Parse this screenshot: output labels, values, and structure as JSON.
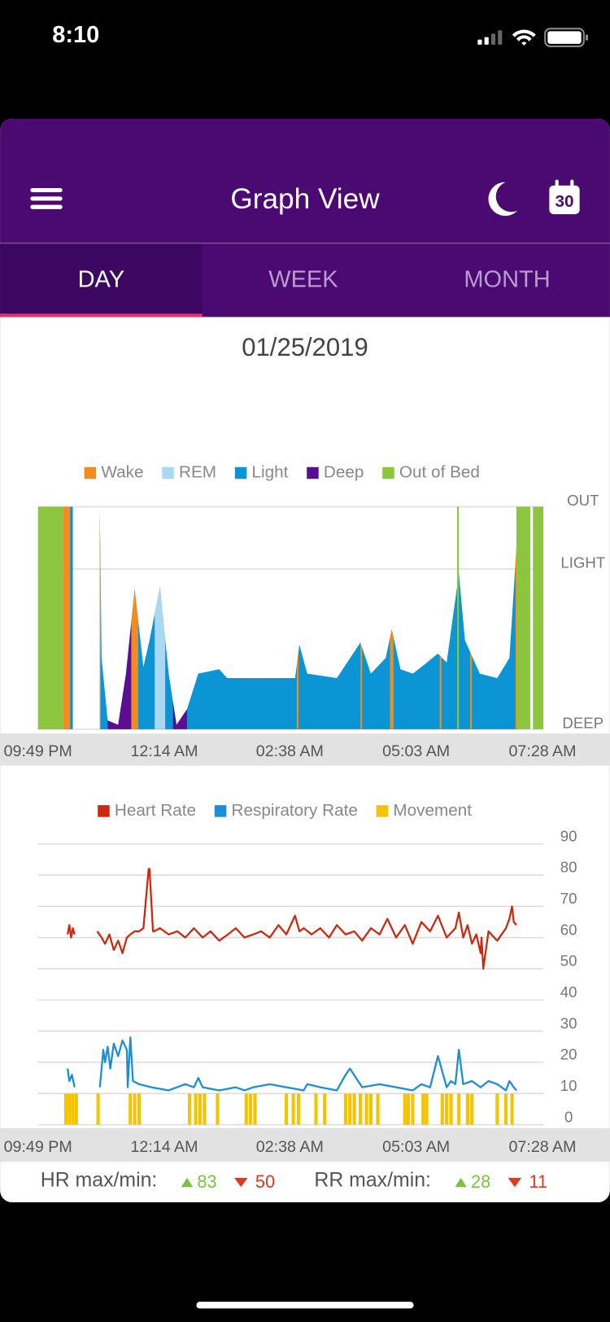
{
  "status_bar": {
    "time": "8:10"
  },
  "header": {
    "title": "Graph View",
    "calendar_day": "30"
  },
  "tabs": [
    "DAY",
    "WEEK",
    "MONTH"
  ],
  "date": "01/25/2019",
  "chart_data": [
    {
      "type": "area",
      "xlim": [
        0,
        580
      ],
      "xticks": [
        {
          "value": 0,
          "label": "09:49 PM"
        },
        {
          "value": 145,
          "label": "12:14 AM"
        },
        {
          "value": 289,
          "label": "02:38 AM"
        },
        {
          "value": 434,
          "label": "05:03 AM"
        },
        {
          "value": 579,
          "label": "07:28 AM"
        }
      ],
      "ylim": [
        0,
        100
      ],
      "yticks": [
        {
          "value": 0,
          "label": "DEEP"
        },
        {
          "value": 72,
          "label": "LIGHT"
        },
        {
          "value": 100,
          "label": "OUT"
        }
      ],
      "grid": true,
      "series": [
        {
          "name": "Wake",
          "color": "#f28c1e",
          "spans": [
            [
              29,
              37
            ],
            [
              70,
              72
            ],
            [
              107,
              115
            ],
            [
              297,
              299
            ],
            [
              370,
              372
            ],
            [
              404,
              408
            ],
            [
              461,
              463
            ],
            [
              496,
              498
            ],
            [
              548,
              551
            ]
          ]
        },
        {
          "name": "REM",
          "color": "#a9d9f2",
          "spans": [
            [
              134,
              146
            ]
          ]
        },
        {
          "name": "Light",
          "color": "#0b95d4",
          "x": [
            29,
            40,
            55,
            71,
            73,
            80,
            92,
            101,
            111,
            121,
            128,
            140,
            150,
            159,
            171,
            184,
            208,
            217,
            295,
            300,
            309,
            343,
            370,
            382,
            399,
            406,
            416,
            430,
            440,
            459,
            469,
            483,
            490,
            507,
            527,
            541,
            549,
            551
          ],
          "values": [
            100,
            100,
            null,
            98,
            32,
            4,
            2,
            25,
            63,
            28,
            40,
            64,
            25,
            2,
            9,
            25,
            27,
            23,
            23,
            38,
            25,
            23,
            39,
            25,
            32,
            45,
            27,
            25,
            28,
            34,
            30,
            70,
            40,
            25,
            23,
            32,
            81,
            97
          ]
        },
        {
          "name": "Deep",
          "color": "#5b0e92",
          "spans": [
            [
              80,
              107
            ],
            [
              155,
              171
            ]
          ]
        },
        {
          "name": "Out of Bed",
          "color": "#8cc63f",
          "full_height": true,
          "spans": [
            [
              0,
              29
            ],
            [
              481,
              483
            ],
            [
              549,
              565
            ],
            [
              568,
              580
            ]
          ]
        }
      ]
    },
    {
      "type": "line",
      "xlim": [
        0,
        580
      ],
      "xticks": [
        {
          "value": 0,
          "label": "09:49 PM"
        },
        {
          "value": 145,
          "label": "12:14 AM"
        },
        {
          "value": 289,
          "label": "02:38 AM"
        },
        {
          "value": 434,
          "label": "05:03 AM"
        },
        {
          "value": 579,
          "label": "07:28 AM"
        }
      ],
      "ylim": [
        0,
        90
      ],
      "yticks": [
        0,
        10,
        20,
        30,
        40,
        50,
        60,
        70,
        80,
        90
      ],
      "grid": true,
      "series": [
        {
          "name": "Heart Rate",
          "color": "#cc2a10",
          "x": [
            34,
            36,
            38,
            40,
            42,
            53,
            68,
            73,
            77,
            82,
            87,
            92,
            97,
            102,
            106,
            111,
            116,
            121,
            127,
            128,
            132,
            133,
            140,
            150,
            160,
            169,
            179,
            189,
            198,
            208,
            218,
            227,
            237,
            247,
            256,
            266,
            276,
            285,
            295,
            300,
            305,
            314,
            324,
            334,
            343,
            353,
            363,
            372,
            382,
            392,
            401,
            411,
            421,
            430,
            440,
            450,
            459,
            469,
            479,
            483,
            488,
            493,
            498,
            503,
            508,
            509,
            511,
            517,
            527,
            537,
            541,
            544,
            546,
            549
          ],
          "values": [
            61,
            64,
            60,
            63,
            61,
            null,
            62,
            60,
            58,
            61,
            56,
            59,
            55,
            60,
            61,
            62,
            62,
            63,
            82,
            82,
            62,
            62,
            63,
            61,
            62,
            60,
            63,
            60,
            62,
            59,
            61,
            63,
            60,
            61,
            62,
            60,
            64,
            61,
            67,
            62,
            63,
            61,
            63,
            60,
            64,
            61,
            62,
            59,
            63,
            61,
            66,
            60,
            64,
            58,
            65,
            62,
            67,
            60,
            63,
            68,
            60,
            64,
            58,
            61,
            55,
            60,
            50,
            62,
            59,
            63,
            66,
            70,
            65,
            64
          ]
        },
        {
          "name": "Respiratory Rate",
          "color": "#1a8fd6",
          "x": [
            34,
            36,
            39,
            42,
            53,
            71,
            75,
            77,
            80,
            83,
            87,
            92,
            97,
            102,
            103,
            106,
            109,
            116,
            130,
            150,
            169,
            179,
            184,
            189,
            208,
            227,
            237,
            247,
            266,
            285,
            305,
            309,
            324,
            343,
            353,
            358,
            372,
            392,
            411,
            430,
            435,
            440,
            450,
            459,
            469,
            474,
            479,
            483,
            488,
            498,
            508,
            517,
            527,
            537,
            541,
            546,
            549
          ],
          "values": [
            18,
            14,
            16,
            12,
            null,
            12,
            24,
            20,
            25,
            18,
            26,
            22,
            27,
            24,
            12,
            28,
            14,
            13,
            12,
            11,
            13,
            12,
            15,
            12,
            11,
            12,
            11,
            12,
            13,
            12,
            11,
            13,
            12,
            11,
            16,
            18,
            12,
            13,
            12,
            11,
            12,
            13,
            12,
            22,
            12,
            14,
            13,
            24,
            13,
            14,
            12,
            14,
            13,
            11,
            14,
            12,
            11
          ]
        },
        {
          "name": "Movement",
          "color": "#f5c400",
          "type": "bar",
          "x": [
            32,
            36,
            40,
            44,
            69,
            106,
            111,
            116,
            174,
            181,
            186,
            191,
            206,
            239,
            244,
            249,
            285,
            293,
            299,
            319,
            329,
            353,
            358,
            363,
            370,
            377,
            382,
            390,
            421,
            425,
            430,
            442,
            446,
            464,
            469,
            474,
            483,
            493,
            498,
            527,
            537,
            544
          ],
          "values": [
            10,
            10,
            10,
            10,
            10,
            10,
            10,
            10,
            10,
            10,
            10,
            10,
            10,
            10,
            10,
            10,
            10,
            10,
            10,
            10,
            10,
            10,
            10,
            10,
            10,
            10,
            10,
            10,
            10,
            10,
            10,
            10,
            10,
            10,
            10,
            10,
            10,
            10,
            10,
            10,
            10,
            10
          ]
        }
      ]
    }
  ],
  "stats": {
    "hr_label": "HR max/min:",
    "hr_max": 83,
    "hr_min": 50,
    "rr_label": "RR max/min:",
    "rr_max": 28,
    "rr_min": 11
  }
}
